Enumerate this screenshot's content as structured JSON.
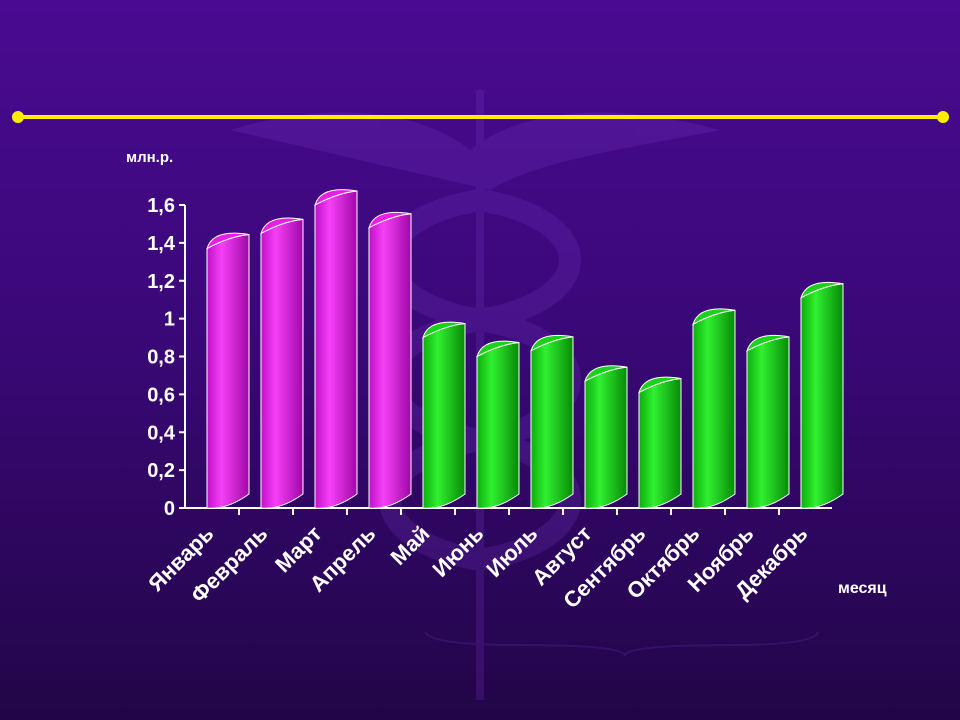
{
  "chart_data": {
    "type": "bar",
    "style": "3d-cylinder",
    "ylabel": "млн.р.",
    "xlabel": "месяц",
    "ylim": [
      0,
      1.6
    ],
    "yticks": [
      "0",
      "0,2",
      "0,4",
      "0,6",
      "0,8",
      "1",
      "1,2",
      "1,4",
      "1,6"
    ],
    "ytick_values": [
      0,
      0.2,
      0.4,
      0.6,
      0.8,
      1.0,
      1.2,
      1.4,
      1.6
    ],
    "categories": [
      "Январь",
      "Февраль",
      "Март",
      "Апрель",
      "Май",
      "Июнь",
      "Июль",
      "Август",
      "Сентябрь",
      "Октябрь",
      "Ноябрь",
      "Декабрь"
    ],
    "values": [
      1.37,
      1.45,
      1.6,
      1.48,
      0.9,
      0.8,
      0.83,
      0.67,
      0.61,
      0.97,
      0.83,
      1.11
    ],
    "bar_colors": [
      "#e61ee6",
      "#e61ee6",
      "#e61ee6",
      "#e61ee6",
      "#19d219",
      "#19d219",
      "#19d219",
      "#19d219",
      "#19d219",
      "#19d219",
      "#19d219",
      "#19d219"
    ],
    "grid": false
  },
  "colors": {
    "background_top": "#4a0a92",
    "background_bottom": "#220548",
    "accent_line": "#ffee00",
    "text": "#ffffff",
    "magenta": "#e61ee6",
    "green": "#19d219"
  }
}
